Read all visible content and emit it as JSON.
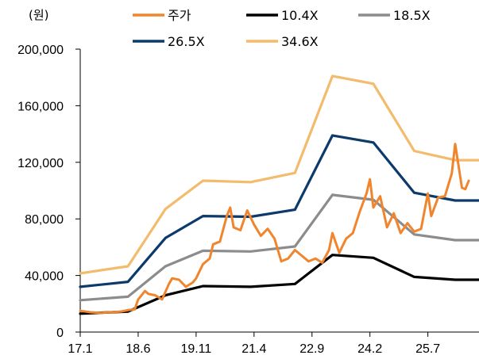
{
  "chart_data": {
    "type": "line",
    "unit_label": "(원)",
    "title": "",
    "xlabel": "",
    "ylabel": "",
    "ylim": [
      0,
      200000
    ],
    "y_ticks": [
      0,
      40000,
      80000,
      120000,
      160000,
      200000
    ],
    "y_tick_labels": [
      "0",
      "40,000",
      "80,000",
      "120,000",
      "160,000",
      "200,000"
    ],
    "x_range": [
      "2017-01",
      "2026-10"
    ],
    "x_ticks": [
      "2017-01",
      "2018-06",
      "2019-11",
      "2021-04",
      "2022-09",
      "2024-02",
      "2025-07"
    ],
    "x_tick_labels": [
      "17.1",
      "18.6",
      "19.11",
      "21.4",
      "22.9",
      "24.2",
      "25.7"
    ],
    "grid": false,
    "legend_position": "top",
    "series": [
      {
        "name": "주가",
        "color": "#f0852d",
        "points": [
          [
            "2017-01",
            15000
          ],
          [
            "2017-04",
            14000
          ],
          [
            "2017-07",
            13500
          ],
          [
            "2017-10",
            14000
          ],
          [
            "2018-01",
            14500
          ],
          [
            "2018-03",
            15500
          ],
          [
            "2018-05",
            16000
          ],
          [
            "2018-06",
            23000
          ],
          [
            "2018-08",
            29000
          ],
          [
            "2018-09",
            27000
          ],
          [
            "2018-11",
            26000
          ],
          [
            "2019-01",
            23000
          ],
          [
            "2019-03",
            34000
          ],
          [
            "2019-04",
            38000
          ],
          [
            "2019-06",
            37000
          ],
          [
            "2019-08",
            32000
          ],
          [
            "2019-10",
            35000
          ],
          [
            "2019-11",
            38000
          ],
          [
            "2020-01",
            48000
          ],
          [
            "2020-03",
            52000
          ],
          [
            "2020-04",
            62000
          ],
          [
            "2020-06",
            64000
          ],
          [
            "2020-08",
            82000
          ],
          [
            "2020-09",
            88000
          ],
          [
            "2020-10",
            74000
          ],
          [
            "2020-12",
            72000
          ],
          [
            "2021-02",
            86000
          ],
          [
            "2021-04",
            76000
          ],
          [
            "2021-06",
            68000
          ],
          [
            "2021-08",
            73000
          ],
          [
            "2021-10",
            66000
          ],
          [
            "2021-12",
            50000
          ],
          [
            "2022-02",
            52000
          ],
          [
            "2022-04",
            58000
          ],
          [
            "2022-06",
            54000
          ],
          [
            "2022-08",
            50000
          ],
          [
            "2022-10",
            52000
          ],
          [
            "2022-12",
            49000
          ],
          [
            "2023-02",
            58000
          ],
          [
            "2023-03",
            70000
          ],
          [
            "2023-05",
            56000
          ],
          [
            "2023-07",
            66000
          ],
          [
            "2023-09",
            70000
          ],
          [
            "2023-11",
            85000
          ],
          [
            "2024-01",
            98000
          ],
          [
            "2024-02",
            108000
          ],
          [
            "2024-03",
            88000
          ],
          [
            "2024-05",
            96000
          ],
          [
            "2024-07",
            74000
          ],
          [
            "2024-09",
            84000
          ],
          [
            "2024-11",
            70000
          ],
          [
            "2025-01",
            77000
          ],
          [
            "2025-03",
            71000
          ],
          [
            "2025-05",
            73000
          ],
          [
            "2025-07",
            98000
          ],
          [
            "2025-08",
            82000
          ],
          [
            "2025-10",
            95000
          ],
          [
            "2025-12",
            96000
          ],
          [
            "2026-02",
            112000
          ],
          [
            "2026-03",
            133000
          ],
          [
            "2026-05",
            102000
          ],
          [
            "2026-06",
            101000
          ],
          [
            "2026-07",
            107000
          ]
        ]
      },
      {
        "name": "10.4X",
        "color": "#000000",
        "points": [
          [
            "2017-01",
            13000
          ],
          [
            "2018-03",
            14500
          ],
          [
            "2019-02",
            26000
          ],
          [
            "2020-01",
            32500
          ],
          [
            "2021-03",
            32000
          ],
          [
            "2022-04",
            34000
          ],
          [
            "2023-03",
            54500
          ],
          [
            "2024-03",
            52500
          ],
          [
            "2025-03",
            39000
          ],
          [
            "2026-03",
            37000
          ],
          [
            "2026-10",
            37000
          ]
        ]
      },
      {
        "name": "18.5X",
        "color": "#8c8c8c",
        "points": [
          [
            "2017-01",
            22500
          ],
          [
            "2018-03",
            25000
          ],
          [
            "2019-02",
            46500
          ],
          [
            "2020-01",
            57500
          ],
          [
            "2021-03",
            57000
          ],
          [
            "2022-04",
            60500
          ],
          [
            "2023-03",
            97000
          ],
          [
            "2024-03",
            93500
          ],
          [
            "2025-03",
            69000
          ],
          [
            "2026-03",
            65000
          ],
          [
            "2026-10",
            65000
          ]
        ]
      },
      {
        "name": "26.5X",
        "color": "#0c3a6b",
        "points": [
          [
            "2017-01",
            32000
          ],
          [
            "2018-03",
            35500
          ],
          [
            "2019-02",
            66500
          ],
          [
            "2020-01",
            82000
          ],
          [
            "2021-03",
            81500
          ],
          [
            "2022-04",
            86500
          ],
          [
            "2023-03",
            139000
          ],
          [
            "2024-03",
            134000
          ],
          [
            "2025-03",
            98500
          ],
          [
            "2026-03",
            93000
          ],
          [
            "2026-10",
            93000
          ]
        ]
      },
      {
        "name": "34.6X",
        "color": "#f3bb6c",
        "points": [
          [
            "2017-01",
            41500
          ],
          [
            "2018-03",
            46500
          ],
          [
            "2019-02",
            87000
          ],
          [
            "2020-01",
            107000
          ],
          [
            "2021-03",
            106000
          ],
          [
            "2022-04",
            112500
          ],
          [
            "2023-03",
            181000
          ],
          [
            "2024-03",
            175500
          ],
          [
            "2025-03",
            128000
          ],
          [
            "2026-03",
            121500
          ],
          [
            "2026-10",
            121500
          ]
        ]
      }
    ]
  }
}
